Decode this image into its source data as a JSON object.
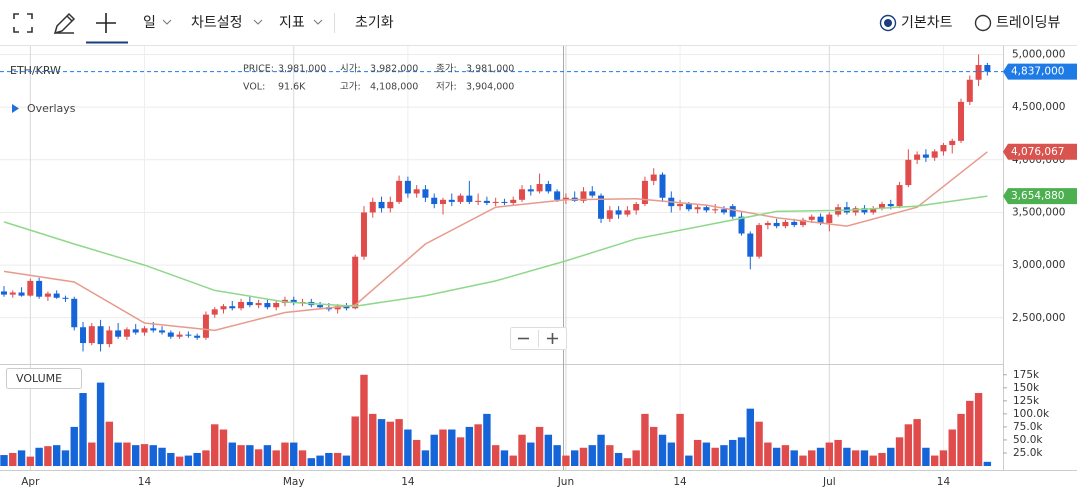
{
  "toolbar": {
    "period": "일",
    "settings": "차트설정",
    "indicators": "지표",
    "reset": "초기화",
    "views": [
      {
        "label": "기본차트",
        "selected": true
      },
      {
        "label": "트레이딩뷰",
        "selected": false
      }
    ]
  },
  "chart_data": {
    "type": "candlestick",
    "symbol": "ETH/KRW",
    "overlays_label": "Overlays",
    "volume_label": "VOLUME",
    "info": [
      {
        "label": "PRICE:",
        "value": "3,981,000"
      },
      {
        "label": "시가:",
        "value": "3,982,000"
      },
      {
        "label": "종가:",
        "value": "3,981,000"
      },
      {
        "label": "VOL:",
        "value": "91.6K"
      },
      {
        "label": "고가:",
        "value": "4,108,000"
      },
      {
        "label": "저가:",
        "value": "3,904,000"
      }
    ],
    "up_color": "#e04b4b",
    "down_color": "#1565d8",
    "ylim": [
      2080000,
      5090000
    ],
    "yticks": [
      {
        "value": 2500000,
        "label": "2,500,000"
      },
      {
        "value": 3000000,
        "label": "3,000,000"
      },
      {
        "value": 3500000,
        "label": "3,500,000"
      },
      {
        "value": 4000000,
        "label": "4,000,000"
      },
      {
        "value": 4500000,
        "label": "4,500,000"
      },
      {
        "value": 5000000,
        "label": "5,000,000"
      }
    ],
    "xticks": [
      {
        "value": 3,
        "label": "Apr"
      },
      {
        "value": 16,
        "label": "14"
      },
      {
        "value": 33,
        "label": "May"
      },
      {
        "value": 46,
        "label": "14"
      },
      {
        "value": 64,
        "label": "Jun"
      },
      {
        "value": 77,
        "label": "14"
      },
      {
        "value": 94,
        "label": "Jul"
      },
      {
        "value": 107,
        "label": "14"
      }
    ],
    "last_price": {
      "value": 4837000,
      "label": "4,837,000",
      "color": "#1e7be6"
    },
    "ohlc": [
      [
        2750000,
        2800000,
        2700000,
        2720000
      ],
      [
        2720000,
        2760000,
        2690000,
        2740000
      ],
      [
        2740000,
        2790000,
        2700000,
        2710000
      ],
      [
        2710000,
        2870000,
        2700000,
        2850000
      ],
      [
        2850000,
        2880000,
        2680000,
        2700000
      ],
      [
        2700000,
        2750000,
        2660000,
        2730000
      ],
      [
        2730000,
        2760000,
        2680000,
        2690000
      ],
      [
        2690000,
        2710000,
        2650000,
        2680000
      ],
      [
        2680000,
        2700000,
        2380000,
        2410000
      ],
      [
        2410000,
        2460000,
        2180000,
        2260000
      ],
      [
        2260000,
        2450000,
        2240000,
        2420000
      ],
      [
        2420000,
        2480000,
        2180000,
        2250000
      ],
      [
        2250000,
        2420000,
        2220000,
        2380000
      ],
      [
        2380000,
        2450000,
        2300000,
        2320000
      ],
      [
        2320000,
        2410000,
        2290000,
        2390000
      ],
      [
        2390000,
        2440000,
        2340000,
        2360000
      ],
      [
        2360000,
        2420000,
        2330000,
        2400000
      ],
      [
        2400000,
        2460000,
        2360000,
        2380000
      ],
      [
        2380000,
        2420000,
        2340000,
        2360000
      ],
      [
        2360000,
        2380000,
        2300000,
        2320000
      ],
      [
        2320000,
        2370000,
        2300000,
        2340000
      ],
      [
        2340000,
        2370000,
        2310000,
        2330000
      ],
      [
        2330000,
        2350000,
        2290000,
        2310000
      ],
      [
        2310000,
        2560000,
        2290000,
        2530000
      ],
      [
        2530000,
        2600000,
        2500000,
        2580000
      ],
      [
        2580000,
        2630000,
        2540000,
        2610000
      ],
      [
        2610000,
        2660000,
        2570000,
        2590000
      ],
      [
        2590000,
        2680000,
        2570000,
        2650000
      ],
      [
        2650000,
        2700000,
        2600000,
        2620000
      ],
      [
        2620000,
        2670000,
        2590000,
        2640000
      ],
      [
        2640000,
        2680000,
        2580000,
        2600000
      ],
      [
        2600000,
        2660000,
        2570000,
        2640000
      ],
      [
        2640000,
        2700000,
        2610000,
        2670000
      ],
      [
        2670000,
        2700000,
        2620000,
        2640000
      ],
      [
        2640000,
        2680000,
        2610000,
        2650000
      ],
      [
        2650000,
        2680000,
        2600000,
        2620000
      ],
      [
        2620000,
        2650000,
        2580000,
        2600000
      ],
      [
        2600000,
        2640000,
        2560000,
        2580000
      ],
      [
        2580000,
        2630000,
        2540000,
        2610000
      ],
      [
        2610000,
        2640000,
        2570000,
        2590000
      ],
      [
        2590000,
        3100000,
        2580000,
        3080000
      ],
      [
        3080000,
        3560000,
        3050000,
        3500000
      ],
      [
        3500000,
        3640000,
        3450000,
        3600000
      ],
      [
        3600000,
        3650000,
        3500000,
        3540000
      ],
      [
        3540000,
        3650000,
        3500000,
        3600000
      ],
      [
        3600000,
        3850000,
        3580000,
        3800000
      ],
      [
        3800000,
        3840000,
        3640000,
        3680000
      ],
      [
        3680000,
        3760000,
        3640000,
        3720000
      ],
      [
        3720000,
        3760000,
        3600000,
        3640000
      ],
      [
        3640000,
        3680000,
        3540000,
        3580000
      ],
      [
        3580000,
        3640000,
        3480000,
        3620000
      ],
      [
        3620000,
        3680000,
        3560000,
        3600000
      ],
      [
        3600000,
        3680000,
        3580000,
        3660000
      ],
      [
        3660000,
        3800000,
        3580000,
        3600000
      ],
      [
        3600000,
        3680000,
        3570000,
        3610000
      ],
      [
        3610000,
        3650000,
        3570000,
        3590000
      ],
      [
        3590000,
        3640000,
        3560000,
        3600000
      ],
      [
        3600000,
        3630000,
        3570000,
        3590000
      ],
      [
        3590000,
        3650000,
        3570000,
        3620000
      ],
      [
        3620000,
        3760000,
        3600000,
        3720000
      ],
      [
        3720000,
        3760000,
        3660000,
        3700000
      ],
      [
        3700000,
        3870000,
        3680000,
        3770000
      ],
      [
        3770000,
        3800000,
        3680000,
        3700000
      ],
      [
        3700000,
        3720000,
        3600000,
        3620000
      ],
      [
        3620000,
        3680000,
        3580000,
        3640000
      ],
      [
        3640000,
        3700000,
        3600000,
        3610000
      ],
      [
        3610000,
        3740000,
        3590000,
        3700000
      ],
      [
        3700000,
        3750000,
        3640000,
        3660000
      ],
      [
        3660000,
        3680000,
        3400000,
        3440000
      ],
      [
        3440000,
        3560000,
        3410000,
        3520000
      ],
      [
        3520000,
        3560000,
        3440000,
        3480000
      ],
      [
        3480000,
        3560000,
        3460000,
        3520000
      ],
      [
        3520000,
        3600000,
        3480000,
        3580000
      ],
      [
        3580000,
        3840000,
        3560000,
        3800000
      ],
      [
        3800000,
        3920000,
        3760000,
        3860000
      ],
      [
        3860000,
        3880000,
        3600000,
        3640000
      ],
      [
        3640000,
        3700000,
        3500000,
        3560000
      ],
      [
        3560000,
        3620000,
        3520000,
        3580000
      ],
      [
        3580000,
        3600000,
        3510000,
        3530000
      ],
      [
        3530000,
        3580000,
        3490000,
        3550000
      ],
      [
        3550000,
        3570000,
        3500000,
        3520000
      ],
      [
        3520000,
        3580000,
        3490000,
        3530000
      ],
      [
        3530000,
        3560000,
        3480000,
        3500000
      ],
      [
        3560000,
        3580000,
        3440000,
        3460000
      ],
      [
        3460000,
        3500000,
        3280000,
        3300000
      ],
      [
        3300000,
        3320000,
        2960000,
        3080000
      ],
      [
        3080000,
        3400000,
        3060000,
        3380000
      ],
      [
        3380000,
        3420000,
        3340000,
        3400000
      ],
      [
        3400000,
        3440000,
        3350000,
        3370000
      ],
      [
        3370000,
        3430000,
        3350000,
        3410000
      ],
      [
        3410000,
        3440000,
        3360000,
        3380000
      ],
      [
        3380000,
        3450000,
        3360000,
        3430000
      ],
      [
        3430000,
        3480000,
        3400000,
        3460000
      ],
      [
        3460000,
        3490000,
        3380000,
        3400000
      ],
      [
        3400000,
        3500000,
        3320000,
        3480000
      ],
      [
        3480000,
        3580000,
        3460000,
        3550000
      ],
      [
        3550000,
        3600000,
        3480000,
        3500000
      ],
      [
        3500000,
        3560000,
        3470000,
        3540000
      ],
      [
        3540000,
        3570000,
        3480000,
        3500000
      ],
      [
        3500000,
        3560000,
        3480000,
        3540000
      ],
      [
        3540000,
        3600000,
        3520000,
        3580000
      ],
      [
        3580000,
        3620000,
        3530000,
        3560000
      ],
      [
        3560000,
        3790000,
        3540000,
        3760000
      ],
      [
        3760000,
        4100000,
        3740000,
        4000000
      ],
      [
        4000000,
        4080000,
        3960000,
        4050000
      ],
      [
        4050000,
        4100000,
        3980000,
        4020000
      ],
      [
        4020000,
        4100000,
        3990000,
        4080000
      ],
      [
        4080000,
        4160000,
        4040000,
        4140000
      ],
      [
        4140000,
        4200000,
        4060000,
        4180000
      ],
      [
        4180000,
        4580000,
        4160000,
        4550000
      ],
      [
        4550000,
        4800000,
        4520000,
        4760000
      ],
      [
        4760000,
        5000000,
        4700000,
        4900000
      ],
      [
        4900000,
        4920000,
        4800000,
        4837000
      ]
    ],
    "ma": [
      {
        "color": "#e89a8c",
        "x": [
          0,
          8,
          16,
          24,
          32,
          40,
          48,
          56,
          64,
          72,
          80,
          88,
          96,
          104,
          112
        ],
        "values": [
          2940000,
          2840000,
          2450000,
          2380000,
          2550000,
          2620000,
          3200000,
          3550000,
          3620000,
          3630000,
          3570000,
          3450000,
          3370000,
          3550000,
          4076067
        ],
        "value_labels": [
          null,
          null,
          null,
          null,
          null,
          null,
          null,
          null,
          null,
          null,
          null,
          null,
          null,
          null,
          "4,076,067"
        ],
        "label_color": "#d9534f"
      },
      {
        "color": "#8fd88a",
        "x": [
          0,
          8,
          16,
          24,
          32,
          40,
          48,
          56,
          64,
          72,
          80,
          88,
          96,
          104,
          112
        ],
        "values": [
          3410000,
          3200000,
          3000000,
          2760000,
          2650000,
          2610000,
          2710000,
          2850000,
          3040000,
          3250000,
          3380000,
          3510000,
          3520000,
          3560000,
          3654880
        ],
        "value_labels": [
          null,
          null,
          null,
          null,
          null,
          null,
          null,
          null,
          null,
          null,
          null,
          null,
          null,
          null,
          "3,654,880"
        ],
        "label_color": "#4caf50"
      }
    ],
    "volume": {
      "ylim": [
        0,
        188000
      ],
      "yticks": [
        {
          "value": 25000,
          "label": "25.0k"
        },
        {
          "value": 50000,
          "label": "50.0k"
        },
        {
          "value": 75000,
          "label": "75.0k"
        },
        {
          "value": 100000,
          "label": "100.0k"
        },
        {
          "value": 125000,
          "label": "125k"
        },
        {
          "value": 150000,
          "label": "150k"
        },
        {
          "value": 175000,
          "label": "175k"
        }
      ],
      "values": [
        21000,
        25000,
        30000,
        18000,
        35000,
        38000,
        40000,
        30000,
        75000,
        140000,
        45000,
        160000,
        85000,
        45000,
        45000,
        40000,
        42000,
        40000,
        35000,
        25000,
        18000,
        20000,
        25000,
        30000,
        80000,
        70000,
        45000,
        40000,
        40000,
        32000,
        40000,
        30000,
        45000,
        45000,
        30000,
        15000,
        20000,
        25000,
        25000,
        20000,
        95000,
        175000,
        100000,
        90000,
        85000,
        90000,
        70000,
        50000,
        30000,
        60000,
        70000,
        70000,
        55000,
        75000,
        80000,
        100000,
        40000,
        30000,
        20000,
        60000,
        45000,
        75000,
        60000,
        40000,
        20000,
        30000,
        35000,
        40000,
        60000,
        40000,
        25000,
        15000,
        30000,
        100000,
        75000,
        60000,
        45000,
        100000,
        20000,
        50000,
        45000,
        35000,
        40000,
        50000,
        55000,
        110000,
        85000,
        45000,
        35000,
        40000,
        30000,
        20000,
        30000,
        35000,
        45000,
        50000,
        35000,
        30000,
        30000,
        20000,
        25000,
        35000,
        55000,
        80000,
        90000,
        35000,
        20000,
        30000,
        70000,
        100000,
        125000,
        140000,
        8000
      ]
    }
  }
}
